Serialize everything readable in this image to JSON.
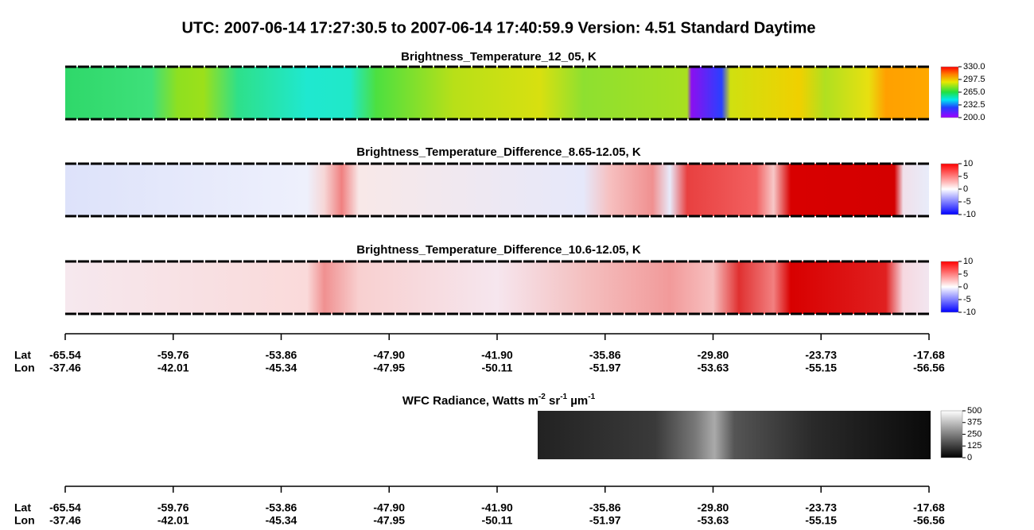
{
  "title": "UTC:  2007-06-14   17:27:30.5  to  2007-06-14   17:40:59.9    Version: 4.51  Standard Daytime",
  "chart_data": [
    {
      "type": "heatmap",
      "title": "Brightness_Temperature_12_05, K",
      "colormap": "rainbow",
      "clim": [
        200,
        330
      ],
      "cticks": [
        {
          "value": 200,
          "label": "200.0"
        },
        {
          "value": 232.5,
          "label": "232.5"
        },
        {
          "value": 265,
          "label": "265.0"
        },
        {
          "value": 297.5,
          "label": "297.5"
        },
        {
          "value": 330,
          "label": "330.0"
        }
      ]
    },
    {
      "type": "heatmap",
      "title": "Brightness_Temperature_Difference_8.65-12.05, K",
      "colormap": "bwr",
      "clim": [
        -10,
        10
      ],
      "cticks": [
        -10,
        -5,
        0,
        5,
        10
      ]
    },
    {
      "type": "heatmap",
      "title": "Brightness_Temperature_Difference_10.6-12.05, K",
      "colormap": "bwr",
      "clim": [
        -10,
        10
      ],
      "cticks": [
        -10,
        -5,
        0,
        5,
        10
      ]
    },
    {
      "type": "heatmap",
      "title": "WFC Radiance, Watts m",
      "title_parts": [
        "-2",
        " sr",
        "-1",
        " µm",
        "-1"
      ],
      "colormap": "gray",
      "clim": [
        0,
        500
      ],
      "cticks": [
        0,
        125,
        250,
        375,
        500
      ]
    }
  ],
  "axes": [
    {
      "row_labels": [
        "Lat",
        "Lon"
      ],
      "lat": [
        "-65.54",
        "-59.76",
        "-53.86",
        "-47.90",
        "-41.90",
        "-35.86",
        "-29.80",
        "-23.73",
        "-17.68"
      ],
      "lon": [
        "-37.46",
        "-42.01",
        "-45.34",
        "-47.95",
        "-50.11",
        "-51.97",
        "-53.63",
        "-55.15",
        "-56.56"
      ]
    },
    {
      "row_labels": [
        "Lat",
        "Lon"
      ],
      "lat": [
        "-65.54",
        "-59.76",
        "-53.86",
        "-47.90",
        "-41.90",
        "-35.86",
        "-29.80",
        "-23.73",
        "-17.68"
      ],
      "lon": [
        "-37.46",
        "-42.01",
        "-45.34",
        "-47.95",
        "-50.11",
        "-51.97",
        "-53.63",
        "-55.15",
        "-56.56"
      ]
    }
  ]
}
